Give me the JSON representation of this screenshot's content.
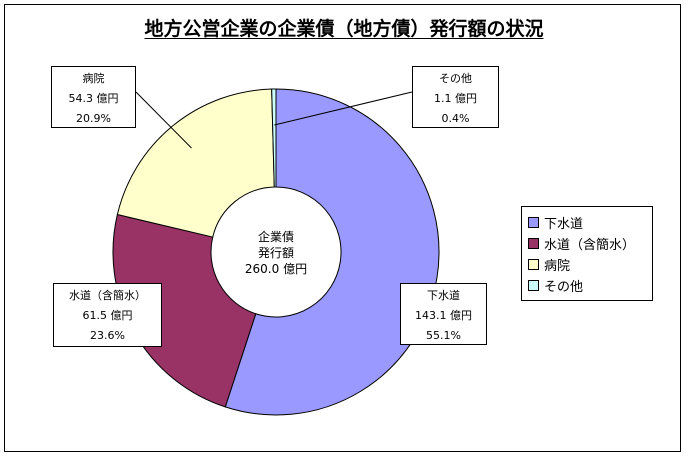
{
  "chart_data": {
    "type": "pie",
    "variant": "donut",
    "title": "地方公営企業の企業債（地方債）発行額の状況",
    "center_label": [
      "企業債",
      "発行額",
      "260.0 億円"
    ],
    "slices": [
      {
        "name": "下水道",
        "value": 143.1,
        "value_label": "143.1 億円",
        "percent_label": "55.1%",
        "color": "#9999ff"
      },
      {
        "name": "水道（含簡水）",
        "value": 61.5,
        "value_label": "61.5 億円",
        "percent_label": "23.6%",
        "color": "#993366"
      },
      {
        "name": "病院",
        "value": 54.3,
        "value_label": "54.3 億円",
        "percent_label": "20.9%",
        "color": "#ffffcc"
      },
      {
        "name": "その他",
        "value": 1.1,
        "value_label": "1.1 億円",
        "percent_label": "0.4%",
        "color": "#ccffff"
      }
    ],
    "start": "top",
    "direction": "clockwise",
    "legend_position": "right"
  }
}
